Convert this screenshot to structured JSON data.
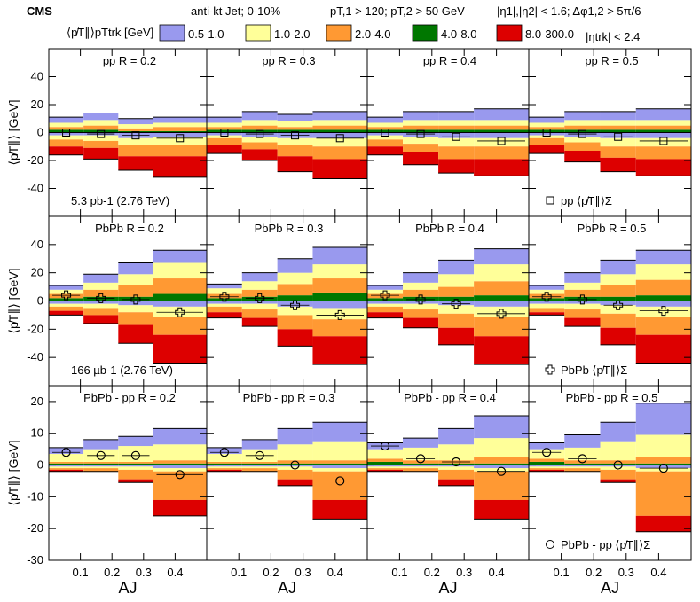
{
  "header": {
    "experiment": "CMS",
    "jet": "anti-kt Jet; 0-10%",
    "pt_cut": "pT,1 > 120; pT,2 > 50 GeV",
    "eta_cut": "|η1|,|η2| < 1.6; Δφ1,2 > 5π/6",
    "trk_cut": "|ηtrk| < 2.4"
  },
  "legend": {
    "title": "⟨p̸T∥⟩pTtrk [GeV]",
    "entries": [
      {
        "label": "0.5-1.0",
        "color": "#9999ee"
      },
      {
        "label": "1.0-2.0",
        "color": "#ffff99"
      },
      {
        "label": "2.0-4.0",
        "color": "#ff9933"
      },
      {
        "label": "4.0-8.0",
        "color": "#007700"
      },
      {
        "label": "8.0-300.0",
        "color": "#dd0000"
      }
    ]
  },
  "chart_data": {
    "type": "stacked-histogram-grid",
    "x_edges": [
      0.0,
      0.11,
      0.22,
      0.33,
      0.5
    ],
    "x_ticks": [
      0.1,
      0.2,
      0.3,
      0.4
    ],
    "x_tick_labels": [
      "0.1",
      "0.2",
      "0.3",
      "0.4"
    ],
    "xlabel": "AJ",
    "xlim": [
      0.0,
      0.5
    ],
    "rows": [
      {
        "name": "pp",
        "ylabel": "⟨p̸T∥⟩ [GeV]",
        "ylim": [
          -60,
          60
        ],
        "yticks": [
          -40,
          -20,
          0,
          20,
          40
        ],
        "ytick_labels": [
          "-40",
          "-20",
          "0",
          "20",
          "40"
        ],
        "annotation": "5.3 pb-1 (2.76 TeV)",
        "marker_legend": "pp ⟨p̸T∥⟩Σ",
        "marker": "square",
        "panels": [
          {
            "title": "pp R = 0.2",
            "pos": [
              [
                2,
                2,
                3,
                4
              ],
              [
                2,
                3,
                4,
                5
              ],
              [
                1,
                2,
                3,
                4
              ],
              [
                1,
                3,
                3,
                4
              ]
            ],
            "neg": [
              [
                2,
                3,
                5,
                6
              ],
              [
                2,
                4,
                5,
                8
              ],
              [
                4,
                5,
                8,
                10
              ],
              [
                3,
                6,
                8,
                15
              ]
            ],
            "sum": [
              0,
              -1,
              -2,
              -4
            ]
          },
          {
            "title": "pp R = 0.3",
            "pos": [
              [
                2,
                2,
                3,
                4
              ],
              [
                2,
                3,
                4,
                6
              ],
              [
                2,
                2,
                4,
                5
              ],
              [
                2,
                3,
                4,
                6
              ]
            ],
            "neg": [
              [
                2,
                2,
                5,
                6
              ],
              [
                3,
                4,
                5,
                8
              ],
              [
                4,
                5,
                8,
                11
              ],
              [
                4,
                6,
                9,
                14
              ]
            ],
            "sum": [
              0,
              -1,
              -2,
              -4
            ]
          },
          {
            "title": "pp R = 0.4",
            "pos": [
              [
                2,
                2,
                3,
                4
              ],
              [
                2,
                3,
                4,
                6
              ],
              [
                2,
                3,
                4,
                6
              ],
              [
                2,
                3,
                4,
                8
              ]
            ],
            "neg": [
              [
                2,
                3,
                5,
                6
              ],
              [
                3,
                5,
                6,
                9
              ],
              [
                4,
                6,
                9,
                10
              ],
              [
                4,
                6,
                9,
                12
              ]
            ],
            "sum": [
              0,
              -1,
              -3,
              -6
            ]
          },
          {
            "title": "pp R = 0.5",
            "pos": [
              [
                2,
                2,
                3,
                4
              ],
              [
                2,
                3,
                4,
                6
              ],
              [
                2,
                3,
                4,
                6
              ],
              [
                2,
                3,
                4,
                8
              ]
            ],
            "neg": [
              [
                2,
                2,
                5,
                6
              ],
              [
                3,
                4,
                6,
                8
              ],
              [
                4,
                6,
                8,
                10
              ],
              [
                4,
                6,
                9,
                12
              ]
            ],
            "sum": [
              0,
              -1,
              -3,
              -6
            ]
          }
        ]
      },
      {
        "name": "PbPb",
        "ylabel": "⟨p̸T∥⟩ [GeV]",
        "ylim": [
          -60,
          60
        ],
        "yticks": [
          -40,
          -20,
          0,
          20,
          40
        ],
        "ytick_labels": [
          "-40",
          "-20",
          "0",
          "20",
          "40"
        ],
        "annotation": "166 µb-1 (2.76 TeV)",
        "marker_legend": "PbPb ⟨p̸T∥⟩Σ",
        "marker": "cross",
        "panels": [
          {
            "title": "PbPb R = 0.2",
            "pos": [
              [
                2,
                3,
                3,
                3
              ],
              [
                3,
                5,
                5,
                6
              ],
              [
                3,
                8,
                8,
                8
              ],
              [
                5,
                11,
                11,
                9
              ]
            ],
            "neg": [
              [
                2,
                2,
                3,
                3
              ],
              [
                2,
                3,
                5,
                6
              ],
              [
                3,
                5,
                9,
                13
              ],
              [
                4,
                7,
                13,
                20
              ]
            ],
            "sum": [
              4,
              2,
              1,
              -8
            ]
          },
          {
            "title": "PbPb R = 0.3",
            "pos": [
              [
                2,
                3,
                4,
                3
              ],
              [
                3,
                5,
                6,
                6
              ],
              [
                4,
                8,
                8,
                10
              ],
              [
                6,
                10,
                10,
                12
              ]
            ],
            "neg": [
              [
                2,
                2,
                4,
                4
              ],
              [
                2,
                4,
                6,
                6
              ],
              [
                4,
                6,
                10,
                12
              ],
              [
                5,
                8,
                12,
                20
              ]
            ],
            "sum": [
              3,
              2,
              -3,
              -10
            ]
          },
          {
            "title": "PbPb R = 0.4",
            "pos": [
              [
                2,
                3,
                3,
                3
              ],
              [
                3,
                5,
                5,
                7
              ],
              [
                3,
                7,
                9,
                10
              ],
              [
                4,
                10,
                12,
                11
              ]
            ],
            "neg": [
              [
                2,
                2,
                4,
                4
              ],
              [
                2,
                4,
                6,
                7
              ],
              [
                3,
                6,
                10,
                12
              ],
              [
                4,
                7,
                14,
                20
              ]
            ],
            "sum": [
              4,
              1,
              -2,
              -9
            ]
          },
          {
            "title": "PbPb R = 0.5",
            "pos": [
              [
                2,
                3,
                3,
                3
              ],
              [
                3,
                5,
                5,
                7
              ],
              [
                3,
                8,
                8,
                10
              ],
              [
                4,
                11,
                11,
                10
              ]
            ],
            "neg": [
              [
                2,
                3,
                3,
                2
              ],
              [
                2,
                4,
                6,
                6
              ],
              [
                3,
                6,
                10,
                12
              ],
              [
                4,
                7,
                13,
                20
              ]
            ],
            "sum": [
              3,
              1,
              -3,
              -7
            ]
          }
        ]
      },
      {
        "name": "PbPb - pp",
        "ylabel": "⟨p̸T∥⟩ [GeV]",
        "ylim": [
          -30,
          25
        ],
        "yticks": [
          -30,
          -20,
          -10,
          0,
          10,
          20
        ],
        "ytick_labels": [
          "-30",
          "-20",
          "-10",
          "0",
          "10",
          "20"
        ],
        "annotation": "",
        "marker_legend": "PbPb - pp ⟨p̸T∥⟩Σ",
        "marker": "circle",
        "panels": [
          {
            "title": "PbPb - pp R = 0.2",
            "pos": [
              [
                0.5,
                0.5,
                2.5,
                2
              ],
              [
                0.5,
                0.5,
                4,
                3
              ],
              [
                0.5,
                0.5,
                5,
                3
              ],
              [
                0.5,
                1,
                5,
                5
              ]
            ],
            "neg": [
              [
                0.5,
                0.5,
                0.5,
                0.5
              ],
              [
                0.5,
                0.5,
                1,
                0
              ],
              [
                0.5,
                1,
                3,
                1
              ],
              [
                1,
                1,
                9,
                5
              ]
            ],
            "sum": [
              4,
              3,
              3,
              -3
            ]
          },
          {
            "title": "PbPb - pp R = 0.3",
            "pos": [
              [
                0.5,
                0.5,
                2.5,
                2
              ],
              [
                0.5,
                0.5,
                4,
                3
              ],
              [
                0.5,
                1,
                5,
                5
              ],
              [
                0.5,
                1,
                6,
                6
              ]
            ],
            "neg": [
              [
                0.5,
                0.5,
                0.5,
                0.5
              ],
              [
                0.5,
                0.5,
                1,
                0
              ],
              [
                0.5,
                1,
                3,
                2
              ],
              [
                1,
                1,
                9,
                6
              ]
            ],
            "sum": [
              4,
              3,
              0,
              -5
            ]
          },
          {
            "title": "PbPb - pp R = 0.4",
            "pos": [
              [
                1,
                1,
                3,
                2
              ],
              [
                0.5,
                1,
                4,
                3
              ],
              [
                0.5,
                1,
                5,
                5
              ],
              [
                0.5,
                2,
                6,
                7
              ]
            ],
            "neg": [
              [
                0.5,
                0.5,
                0.5,
                0.5
              ],
              [
                0.5,
                0.5,
                1,
                0
              ],
              [
                0.5,
                1,
                3,
                2
              ],
              [
                1,
                1,
                9,
                6
              ]
            ],
            "sum": [
              6,
              2,
              1,
              -2
            ]
          },
          {
            "title": "PbPb - pp R = 0.5",
            "pos": [
              [
                1,
                1,
                3,
                2
              ],
              [
                0.5,
                1,
                4,
                4
              ],
              [
                0.5,
                1,
                6,
                6
              ],
              [
                0.5,
                2,
                7,
                10
              ]
            ],
            "neg": [
              [
                0.5,
                0.5,
                0.5,
                0.5
              ],
              [
                0.5,
                0.5,
                1,
                0
              ],
              [
                0.5,
                1,
                3,
                1
              ],
              [
                1,
                1,
                14,
                5
              ]
            ],
            "sum": [
              4,
              2,
              0,
              -1
            ]
          }
        ]
      }
    ]
  }
}
